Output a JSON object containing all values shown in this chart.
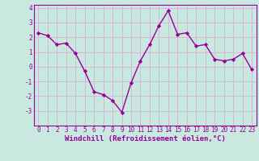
{
  "x": [
    0,
    1,
    2,
    3,
    4,
    5,
    6,
    7,
    8,
    9,
    10,
    11,
    12,
    13,
    14,
    15,
    16,
    17,
    18,
    19,
    20,
    21,
    22,
    23
  ],
  "y": [
    2.3,
    2.1,
    1.5,
    1.6,
    0.9,
    -0.3,
    -1.7,
    -1.9,
    -2.3,
    -3.1,
    -1.1,
    0.4,
    1.5,
    2.8,
    3.8,
    2.2,
    2.3,
    1.4,
    1.5,
    0.5,
    0.4,
    0.5,
    0.9,
    -0.2
  ],
  "line_color": "#990099",
  "marker": "D",
  "marker_size": 2.2,
  "bg_color": "#c8e8e0",
  "grid_color": "#d4b8d4",
  "xlabel": "Windchill (Refroidissement éolien,°C)",
  "xlim": [
    -0.5,
    23.5
  ],
  "ylim": [
    -4,
    4.2
  ],
  "yticks": [
    -3,
    -2,
    -1,
    0,
    1,
    2,
    3,
    4
  ],
  "xticks": [
    0,
    1,
    2,
    3,
    4,
    5,
    6,
    7,
    8,
    9,
    10,
    11,
    12,
    13,
    14,
    15,
    16,
    17,
    18,
    19,
    20,
    21,
    22,
    23
  ],
  "tick_label_size": 5.5,
  "xlabel_size": 6.5,
  "line_width": 1.0,
  "tick_color": "#990099",
  "label_color": "#990099"
}
